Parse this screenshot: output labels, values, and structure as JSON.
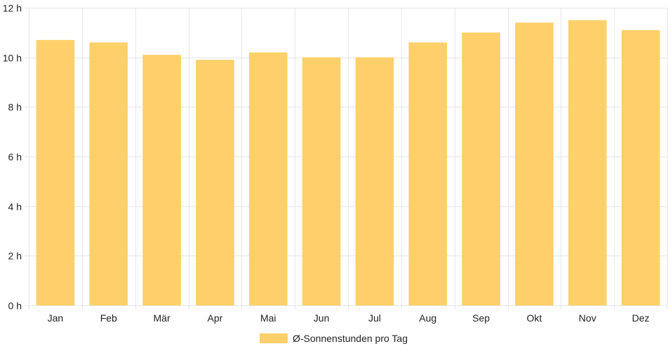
{
  "chart_data": {
    "type": "bar",
    "categories": [
      "Jan",
      "Feb",
      "Mär",
      "Apr",
      "Mai",
      "Jun",
      "Jul",
      "Aug",
      "Sep",
      "Okt",
      "Nov",
      "Dez"
    ],
    "series": [
      {
        "name": "Ø-Sonnenstunden pro Tag",
        "values": [
          10.7,
          10.6,
          10.1,
          9.9,
          10.2,
          10.0,
          10.0,
          10.6,
          11.0,
          11.4,
          11.5,
          11.1
        ]
      }
    ],
    "y_ticks": [
      "0 h",
      "2 h",
      "4 h",
      "6 h",
      "8 h",
      "10 h",
      "12 h"
    ],
    "ylim": [
      0,
      12
    ],
    "grid": true,
    "legend_position": "bottom",
    "colors": {
      "bar": "#fdd069",
      "grid": "#e6e6e6",
      "text": "#222222"
    }
  }
}
